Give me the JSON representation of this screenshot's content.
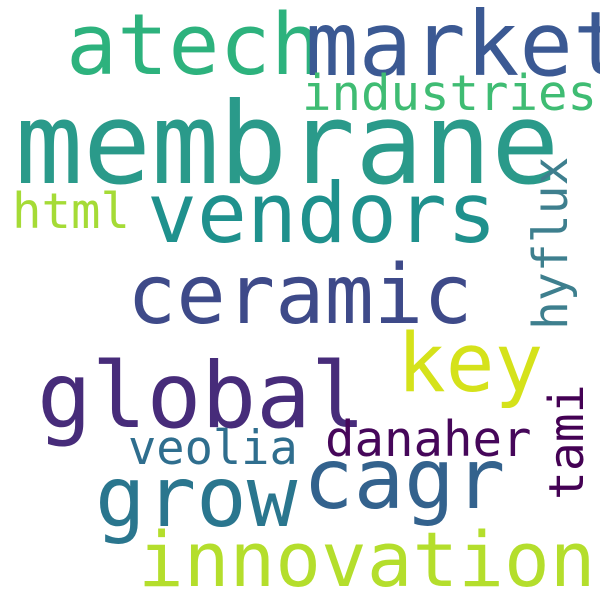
{
  "words": {
    "membrane": {
      "text": "membrane",
      "color": "#2a9a8a"
    },
    "market": {
      "text": "market",
      "color": "#3b5993"
    },
    "atech": {
      "text": "atech",
      "color": "#2db27d"
    },
    "industries": {
      "text": "industries",
      "color": "#3fbc73"
    },
    "vendors": {
      "text": "vendors",
      "color": "#1f918d"
    },
    "html": {
      "text": "html",
      "color": "#a5db36"
    },
    "ceramic": {
      "text": "ceramic",
      "color": "#3e4a89"
    },
    "hyflux": {
      "text": "hyflux",
      "color": "#3e7f8e"
    },
    "key": {
      "text": "key",
      "color": "#d5e21a"
    },
    "global": {
      "text": "global",
      "color": "#472c7a"
    },
    "danaher": {
      "text": "danaher",
      "color": "#46075a"
    },
    "veolia": {
      "text": "veolia",
      "color": "#2f6e8e"
    },
    "cagr": {
      "text": "cagr",
      "color": "#33628d"
    },
    "grow": {
      "text": "grow",
      "color": "#2a768e"
    },
    "tami": {
      "text": "tami",
      "color": "#440154"
    },
    "innovations": {
      "text": "innovations",
      "color": "#b4de2c"
    }
  }
}
